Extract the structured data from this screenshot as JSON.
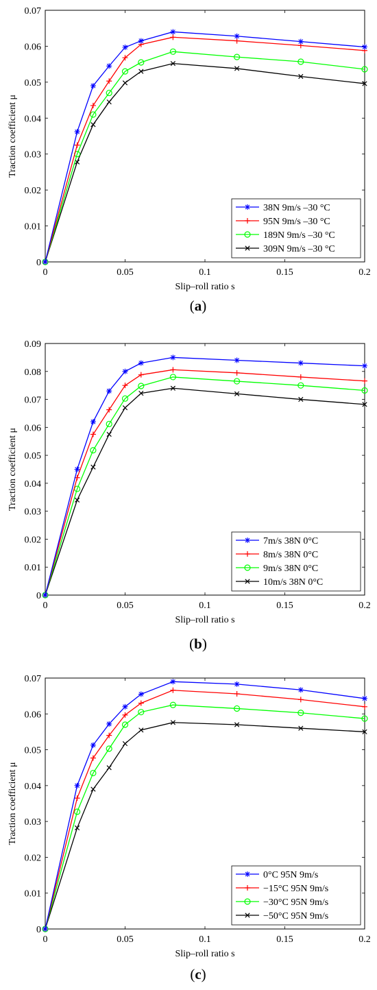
{
  "colors": {
    "blue": "#0000ff",
    "red": "#ff0000",
    "green": "#00ff00",
    "black": "#000000"
  },
  "chart_data": [
    {
      "panel_label": "(a)",
      "type": "line",
      "xlabel": "Slip–roll ratio   s",
      "ylabel": "Traction coefficient   μ",
      "xlim": [
        0,
        0.2
      ],
      "ylim": [
        0,
        0.07
      ],
      "xticks": [
        "0",
        "0.05",
        "0.1",
        "0.15",
        "0.2"
      ],
      "yticks": [
        "0",
        "0.01",
        "0.02",
        "0.03",
        "0.04",
        "0.05",
        "0.06",
        "0.07"
      ],
      "grid": false,
      "legend_position": "bottom-right",
      "x": [
        0,
        0.02,
        0.03,
        0.04,
        0.05,
        0.06,
        0.08,
        0.12,
        0.16,
        0.2
      ],
      "series": [
        {
          "name": "38N 9m/s –30 °C",
          "color": "#0000ff",
          "marker": "star",
          "values": [
            0,
            0.0362,
            0.049,
            0.0545,
            0.0597,
            0.0615,
            0.064,
            0.0628,
            0.0613,
            0.0598
          ]
        },
        {
          "name": "95N 9m/s –30 °C",
          "color": "#ff0000",
          "marker": "plus",
          "values": [
            0,
            0.0325,
            0.0435,
            0.0503,
            0.0568,
            0.0605,
            0.0625,
            0.0615,
            0.0602,
            0.0588
          ]
        },
        {
          "name": "189N 9m/s –30 °C",
          "color": "#00ff00",
          "marker": "circle",
          "values": [
            0,
            0.03,
            0.041,
            0.047,
            0.053,
            0.0555,
            0.0585,
            0.057,
            0.0557,
            0.0536
          ]
        },
        {
          "name": "309N 9m/s –30 °C",
          "color": "#000000",
          "marker": "x",
          "values": [
            0,
            0.0278,
            0.0382,
            0.0445,
            0.0498,
            0.053,
            0.0552,
            0.0538,
            0.0516,
            0.0496
          ]
        }
      ]
    },
    {
      "panel_label": "(b)",
      "type": "line",
      "xlabel": "Slip–roll ratio   s",
      "ylabel": "Traction coefficient   μ",
      "xlim": [
        0,
        0.2
      ],
      "ylim": [
        0,
        0.09
      ],
      "xticks": [
        "0",
        "0.05",
        "0.1",
        "0.15",
        "0.2"
      ],
      "yticks": [
        "0",
        "0.01",
        "0.02",
        "0.03",
        "0.04",
        "0.05",
        "0.06",
        "0.07",
        "0.08",
        "0.09"
      ],
      "grid": false,
      "legend_position": "bottom-right",
      "x": [
        0,
        0.02,
        0.03,
        0.04,
        0.05,
        0.06,
        0.08,
        0.12,
        0.16,
        0.2
      ],
      "series": [
        {
          "name": "7m/s 38N 0°C",
          "color": "#0000ff",
          "marker": "star",
          "values": [
            0,
            0.045,
            0.062,
            0.073,
            0.08,
            0.083,
            0.085,
            0.084,
            0.083,
            0.082
          ]
        },
        {
          "name": "8m/s 38N 0°C",
          "color": "#ff0000",
          "marker": "plus",
          "values": [
            0,
            0.042,
            0.0575,
            0.0663,
            0.075,
            0.0788,
            0.0806,
            0.0795,
            0.078,
            0.0766
          ]
        },
        {
          "name": "9m/s 38N 0°C",
          "color": "#00ff00",
          "marker": "circle",
          "values": [
            0,
            0.038,
            0.0518,
            0.0612,
            0.0703,
            0.0748,
            0.078,
            0.0765,
            0.075,
            0.0732
          ]
        },
        {
          "name": "10m/s 38N 0°C",
          "color": "#000000",
          "marker": "x",
          "values": [
            0,
            0.034,
            0.0458,
            0.0575,
            0.067,
            0.0722,
            0.074,
            0.072,
            0.07,
            0.0682
          ]
        }
      ]
    },
    {
      "panel_label": "(c)",
      "type": "line",
      "xlabel": "Slip–roll ratio   s",
      "ylabel": "Traction coefficient   μ",
      "xlim": [
        0,
        0.2
      ],
      "ylim": [
        0,
        0.07
      ],
      "xticks": [
        "0",
        "0.05",
        "0.1",
        "0.15",
        "0.2"
      ],
      "yticks": [
        "0",
        "0.01",
        "0.02",
        "0.03",
        "0.04",
        "0.05",
        "0.06",
        "0.07"
      ],
      "grid": false,
      "legend_position": "bottom-right",
      "x": [
        0,
        0.02,
        0.03,
        0.04,
        0.05,
        0.06,
        0.08,
        0.12,
        0.16,
        0.2
      ],
      "series": [
        {
          "name": "0°C 95N 9m/s",
          "color": "#0000ff",
          "marker": "star",
          "values": [
            0,
            0.04,
            0.0513,
            0.0572,
            0.062,
            0.0655,
            0.069,
            0.0683,
            0.0667,
            0.0643
          ]
        },
        {
          "name": "−15°C 95N 9m/s",
          "color": "#ff0000",
          "marker": "plus",
          "values": [
            0,
            0.0365,
            0.0477,
            0.054,
            0.0597,
            0.063,
            0.0666,
            0.0656,
            0.064,
            0.062
          ]
        },
        {
          "name": "−30°C 95N 9m/s",
          "color": "#00ff00",
          "marker": "circle",
          "values": [
            0,
            0.0327,
            0.0435,
            0.0503,
            0.057,
            0.0605,
            0.0625,
            0.0615,
            0.0603,
            0.0587
          ]
        },
        {
          "name": "−50°C 95N 9m/s",
          "color": "#000000",
          "marker": "x",
          "values": [
            0,
            0.0282,
            0.039,
            0.045,
            0.0517,
            0.0555,
            0.0576,
            0.057,
            0.056,
            0.055
          ]
        }
      ]
    }
  ]
}
